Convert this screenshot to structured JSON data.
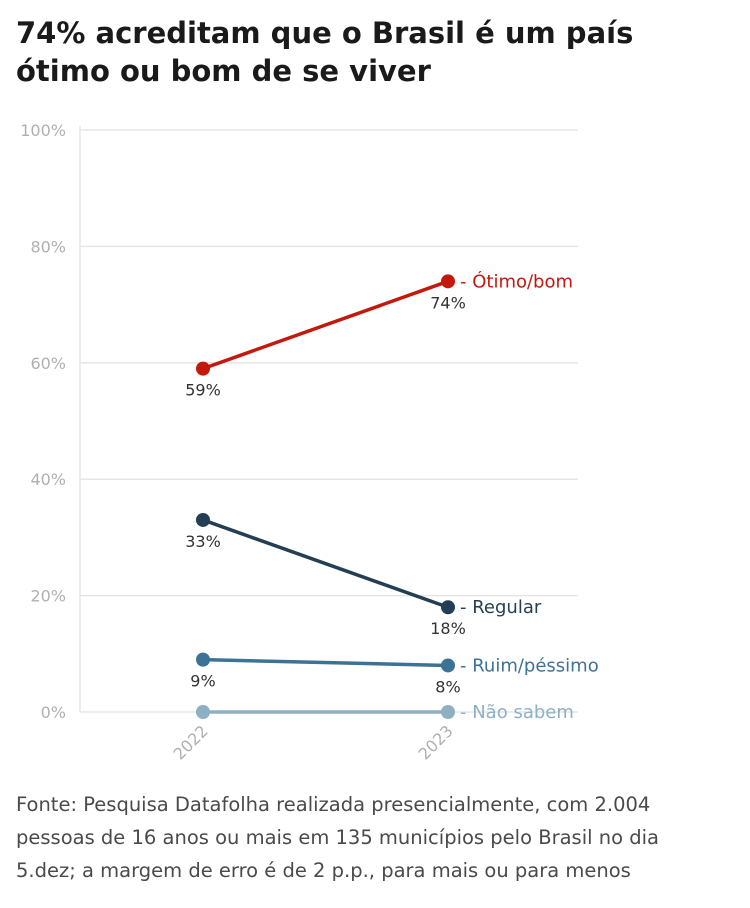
{
  "title": "74% acreditam que o Brasil é um país ótimo ou bom de se viver",
  "source": "Fonte: Pesquisa Datafolha realizada presencialmente, com 2.004 pessoas de 16 anos ou mais em 135 municípios pelo Brasil no dia 5.dez; a margem de erro é de 2 p.p., para mais ou para menos",
  "chart_data": {
    "type": "line",
    "x": [
      "2022",
      "2023"
    ],
    "ylim": [
      0,
      100
    ],
    "yticks": [
      "0%",
      "20%",
      "40%",
      "60%",
      "80%",
      "100%"
    ],
    "ytick_values": [
      0,
      20,
      40,
      60,
      80,
      100
    ],
    "grid": true,
    "series": [
      {
        "name": "Ótimo/bom",
        "values": [
          59,
          74
        ],
        "labels": [
          "59%",
          "74%"
        ],
        "color": "#c4180c"
      },
      {
        "name": "Regular",
        "values": [
          33,
          18
        ],
        "labels": [
          "33%",
          "18%"
        ],
        "color": "#243f54"
      },
      {
        "name": "Ruim/péssimo",
        "values": [
          9,
          8
        ],
        "labels": [
          "9%",
          "8%"
        ],
        "color": "#3c7296"
      },
      {
        "name": "Não sabem",
        "values": [
          0,
          0
        ],
        "labels": [
          "",
          ""
        ],
        "color": "#8fb0c2"
      }
    ]
  }
}
